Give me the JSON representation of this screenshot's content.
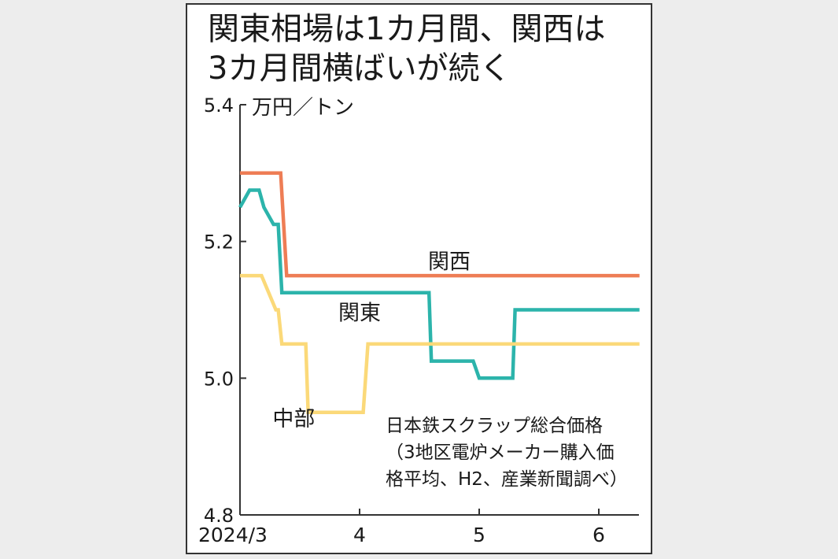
{
  "chart_data": {
    "type": "line",
    "title": "関東相場は1カ月間、関西は\n3カ月間横ばいが続く",
    "unit_label": "万円／トン",
    "ylim": [
      4.8,
      5.4
    ],
    "y_ticks": [
      {
        "value": 5.4,
        "label": "5.4"
      },
      {
        "value": 5.2,
        "label": "5.2"
      },
      {
        "value": 5.0,
        "label": "5.0"
      },
      {
        "value": 4.8,
        "label": "4.8"
      }
    ],
    "xlim": [
      0,
      3.34
    ],
    "x_ticks": [
      {
        "value": 0,
        "label": "2024/3"
      },
      {
        "value": 1,
        "label": "4"
      },
      {
        "value": 2,
        "label": "5"
      },
      {
        "value": 3,
        "label": "6"
      }
    ],
    "x_note": "x = months since 2024/3 start",
    "series": [
      {
        "name": "関西",
        "color": "#ee7d55",
        "label_at": [
          1.75,
          5.16
        ],
        "points": [
          [
            0,
            5.3
          ],
          [
            0.34,
            5.3
          ],
          [
            0.39,
            5.15
          ],
          [
            3.34,
            5.15
          ]
        ]
      },
      {
        "name": "関東",
        "color": "#2cb4ab",
        "label_at": [
          1.0,
          5.085
        ],
        "points": [
          [
            0,
            5.25
          ],
          [
            0.08,
            5.275
          ],
          [
            0.16,
            5.275
          ],
          [
            0.2,
            5.25
          ],
          [
            0.28,
            5.225
          ],
          [
            0.32,
            5.225
          ],
          [
            0.35,
            5.125
          ],
          [
            1.58,
            5.125
          ],
          [
            1.6,
            5.025
          ],
          [
            1.95,
            5.025
          ],
          [
            2.0,
            5.0
          ],
          [
            2.28,
            5.0
          ],
          [
            2.3,
            5.1
          ],
          [
            3.34,
            5.1
          ]
        ]
      },
      {
        "name": "中部",
        "color": "#fbd979",
        "label_at": [
          0.45,
          4.93
        ],
        "points": [
          [
            0,
            5.15
          ],
          [
            0.18,
            5.15
          ],
          [
            0.3,
            5.1
          ],
          [
            0.32,
            5.1
          ],
          [
            0.35,
            5.05
          ],
          [
            0.55,
            5.05
          ],
          [
            0.57,
            4.95
          ],
          [
            1.03,
            4.95
          ],
          [
            1.07,
            5.05
          ],
          [
            3.34,
            5.05
          ]
        ]
      }
    ],
    "source_note": "日本鉄スクラップ総合価格\n（3地区電炉メーカー購入価\n格平均、H2、産業新聞調べ）"
  }
}
